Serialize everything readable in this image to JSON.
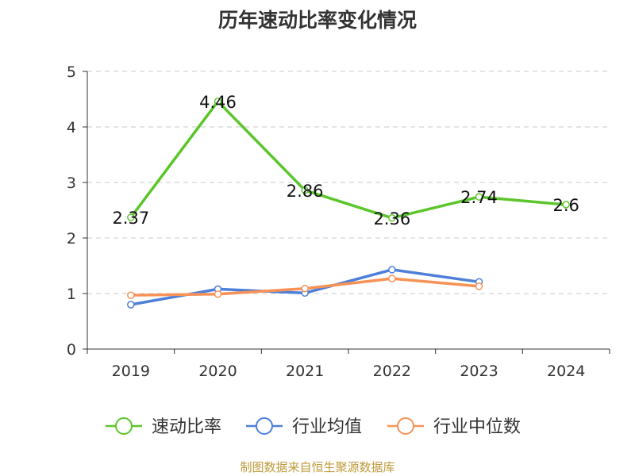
{
  "title": "历年速动比率变化情况",
  "source": "制图数据来自恒生聚源数据库",
  "colors": {
    "speed_ratio": "#5cc52b",
    "industry_avg": "#4e7fd9",
    "industry_median": "#f79257",
    "grid": "#c8c8c8",
    "axis": "#333333"
  },
  "chart_data": {
    "type": "line",
    "title": "历年速动比率变化情况",
    "categories": [
      "2019",
      "2020",
      "2021",
      "2022",
      "2023",
      "2024"
    ],
    "ylim": [
      0,
      5
    ],
    "yticks": [
      0,
      1,
      2,
      3,
      4,
      5
    ],
    "grid": true,
    "legend_position": "bottom",
    "series": [
      {
        "name": "速动比率",
        "color_key": "speed_ratio",
        "values": [
          2.37,
          4.46,
          2.86,
          2.36,
          2.74,
          2.6
        ],
        "labels": [
          "2.37",
          "4.46",
          "2.86",
          "2.36",
          "2.74",
          "2.6"
        ]
      },
      {
        "name": "行业均值",
        "color_key": "industry_avg",
        "values": [
          0.8,
          1.08,
          1.01,
          1.43,
          1.21,
          null
        ]
      },
      {
        "name": "行业中位数",
        "color_key": "industry_median",
        "values": [
          0.97,
          0.99,
          1.09,
          1.27,
          1.13,
          null
        ]
      }
    ]
  }
}
